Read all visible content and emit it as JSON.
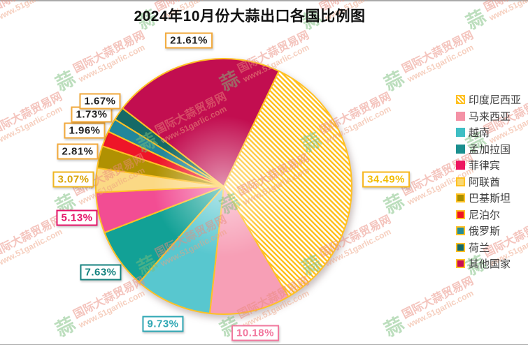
{
  "page": {
    "title": "2024年10月份大蒜出口各国比例图",
    "background": "#FFFFFF",
    "top_border_color": "#A9A9A9",
    "bottom_border_color": "#B5B5B5",
    "accent_gold": "#FFC125"
  },
  "watermark": {
    "logo_char": "蒜",
    "line1": "国际大蒜贸易网",
    "line2": "www.51garlic.com"
  },
  "chart_data": {
    "type": "pie",
    "title": "2024年10月份大蒜出口各国比例图",
    "unit": "%",
    "direction": "clockwise",
    "start_angle_cw_from_12": 25.5,
    "legend_position": "right",
    "slice_stroke_color": "#FFC125",
    "categories": [
      "印度尼西亚",
      "马来西亚",
      "越南",
      "孟加拉国",
      "菲律宾",
      "阿联酋",
      "巴基斯坦",
      "尼泊尔",
      "俄罗斯",
      "荷兰",
      "其他国家"
    ],
    "values": [
      34.49,
      10.18,
      9.73,
      7.63,
      5.13,
      3.07,
      2.81,
      1.96,
      1.73,
      1.67,
      21.61
    ],
    "series": [
      {
        "id": "indonesia",
        "label": "印度尼西亚",
        "value": 34.49,
        "pct_text": "34.49%",
        "hatch": true,
        "slice_fill": "#FFBE16",
        "legend_fill": "hatch",
        "legend_border": "#FFC125",
        "label_text_color": "#F2BC00",
        "label_border_color": "#F7B71E",
        "label_radius": 232
      },
      {
        "id": "malaysia",
        "label": "马来西亚",
        "value": 10.18,
        "pct_text": "10.18%",
        "hatch": false,
        "slice_fill": "#F79FB6",
        "legend_fill": "#F492A6",
        "legend_border": "#F492A6",
        "label_text_color": "#F2789E",
        "label_border_color": "#F2789E",
        "label_radius": 215
      },
      {
        "id": "vietnam",
        "label": "越南",
        "value": 9.73,
        "pct_text": "9.73%",
        "hatch": false,
        "slice_fill": "#58C7CF",
        "legend_fill": "#3FBEC4",
        "legend_border": "#3FBEC4",
        "label_text_color": "#2EA7B4",
        "label_border_color": "#2EA7B4",
        "label_radius": 215
      },
      {
        "id": "bangladesh",
        "label": "孟加拉国",
        "value": 7.63,
        "pct_text": "7.63%",
        "hatch": false,
        "slice_fill": "#12A196",
        "legend_fill": "#1A8F8F",
        "legend_border": "#1A8F8F",
        "label_text_color": "#15827F",
        "label_border_color": "#15827F",
        "label_radius": 215
      },
      {
        "id": "philippines",
        "label": "菲律宾",
        "value": 5.13,
        "pct_text": "5.13%",
        "hatch": false,
        "slice_fill": "#F24D93",
        "legend_fill": "#ED1660",
        "legend_border": "#ED1660",
        "label_text_color": "#E51368",
        "label_border_color": "#E51368",
        "label_radius": 215
      },
      {
        "id": "uae",
        "label": "阿联酋",
        "value": 3.07,
        "pct_text": "3.07%",
        "hatch": false,
        "slice_fill": "#FBD985",
        "legend_fill": "#FAD873",
        "legend_border": "#FFC125",
        "label_text_color": "#D9A404",
        "label_border_color": "#EFB622",
        "label_radius": 215
      },
      {
        "id": "pakistan",
        "label": "巴基斯坦",
        "value": 2.81,
        "pct_text": "2.81%",
        "hatch": false,
        "slice_fill": "#B09102",
        "legend_fill": "#A98E00",
        "legend_border": "#FFC125",
        "label_text_color": "#1F1F1F",
        "label_border_color": "#F2A93B",
        "label_radius": 215
      },
      {
        "id": "nepal",
        "label": "尼泊尔",
        "value": 1.96,
        "pct_text": "1.96%",
        "hatch": false,
        "slice_fill": "#EE1528",
        "legend_fill": "#EE1222",
        "legend_border": "#FFC125",
        "label_text_color": "#1F1F1F",
        "label_border_color": "#F2A93B",
        "label_radius": 215
      },
      {
        "id": "russia",
        "label": "俄罗斯",
        "value": 1.73,
        "pct_text": "1.73%",
        "hatch": false,
        "slice_fill": "#21879B",
        "legend_fill": "#268C96",
        "legend_border": "#FFC125",
        "label_text_color": "#1F1F1F",
        "label_border_color": "#F2A93B",
        "label_radius": 215
      },
      {
        "id": "netherlands",
        "label": "荷兰",
        "value": 1.67,
        "pct_text": "1.67%",
        "hatch": false,
        "slice_fill": "#156A67",
        "legend_fill": "#13686B",
        "legend_border": "#FFC125",
        "label_text_color": "#1F1F1F",
        "label_border_color": "#F2A93B",
        "label_radius": 215
      },
      {
        "id": "others",
        "label": "其他国家",
        "value": 21.61,
        "pct_text": "21.61%",
        "hatch": false,
        "slice_fill": "#C20E50",
        "legend_fill": "#C80D52",
        "legend_border": "#FFC125",
        "label_text_color": "#1F1F1F",
        "label_border_color": "#F2A93B",
        "label_radius": 215
      }
    ],
    "geometry": {
      "center_x": 320,
      "center_y": 267,
      "radius": 183
    }
  }
}
